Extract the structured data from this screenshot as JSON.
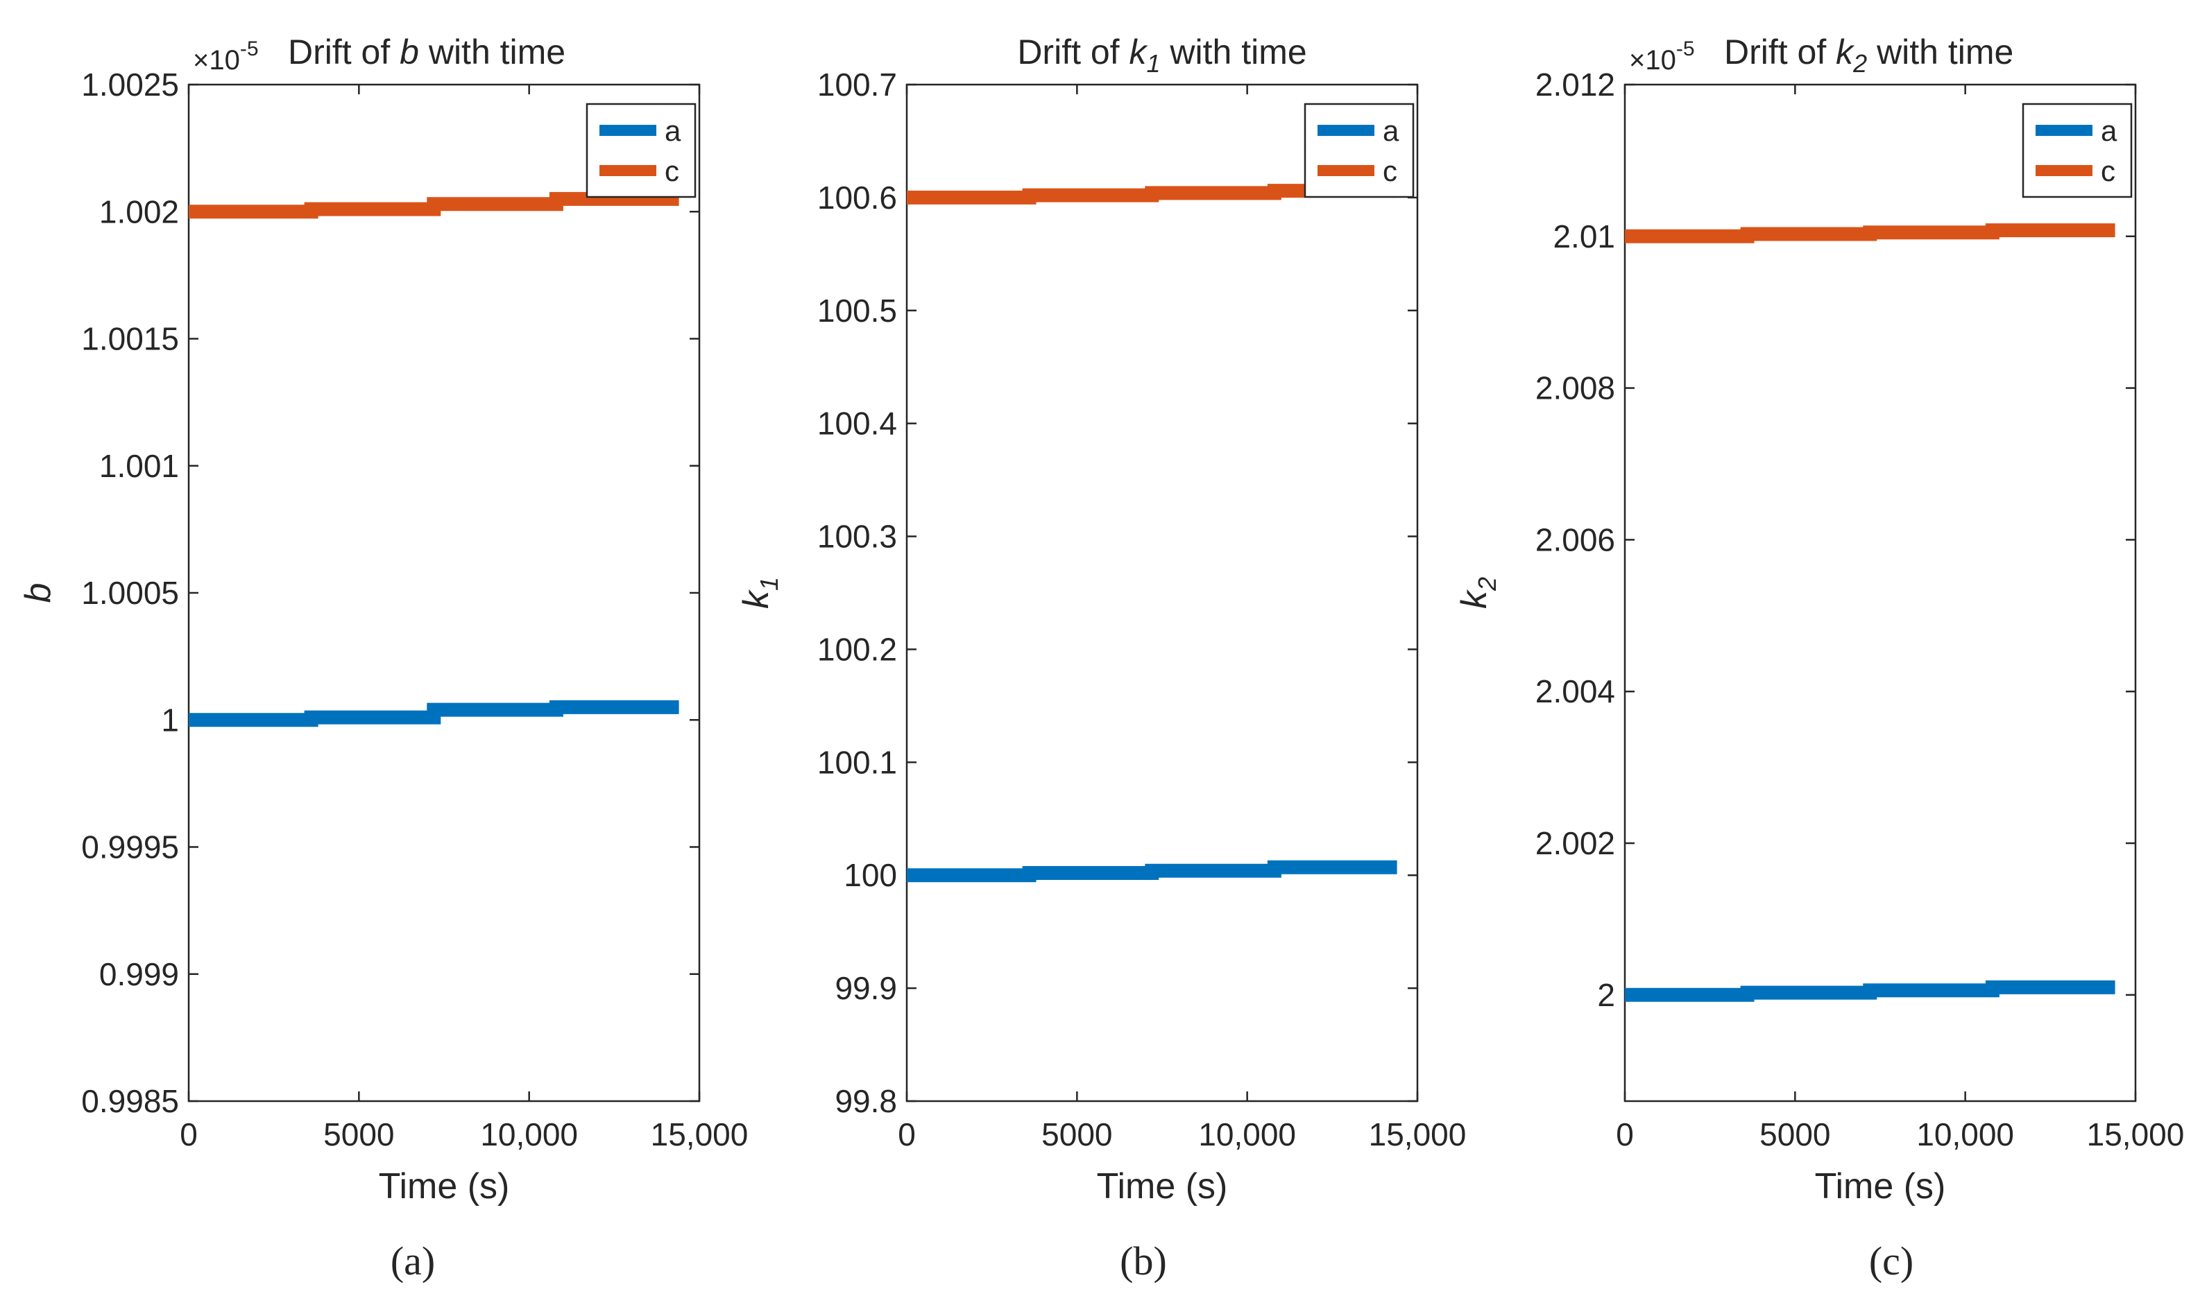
{
  "figure": {
    "captions": [
      "(a)",
      "(b)",
      "(c)"
    ]
  },
  "colors": {
    "series_a": "#0072BD",
    "series_c": "#D95319",
    "axis": "#262626",
    "background": "#ffffff"
  },
  "chart_data": [
    {
      "type": "line",
      "title_parts": [
        "Drift of ",
        "b",
        "",
        " with time"
      ],
      "exponent_base": "×10",
      "exponent_power": "-5",
      "xlabel": "Time (s)",
      "ylabel_main": "b",
      "ylabel_sub": "",
      "xlim": [
        0,
        15000
      ],
      "ylim": [
        0.9985,
        1.0025
      ],
      "xticks": [
        0,
        5000,
        10000,
        15000
      ],
      "xtick_labels": [
        "0",
        "5000",
        "10,000",
        "15,000"
      ],
      "yticks": [
        0.9985,
        0.999,
        0.9995,
        1,
        1.0005,
        1.001,
        1.0015,
        1.002,
        1.0025
      ],
      "ytick_labels": [
        "0.9985",
        "0.999",
        "0.9995",
        "1",
        "1.0005",
        "1.001",
        "1.0015",
        "1.002",
        "1.0025"
      ],
      "legend_position": "top-right",
      "series": [
        {
          "name": "a",
          "color": "#0072BD",
          "x": [
            0,
            3600,
            3600,
            7200,
            7200,
            10800,
            10800,
            14400
          ],
          "y": [
            1.0,
            1.0,
            1.00001,
            1.00001,
            1.00004,
            1.00004,
            1.00005,
            1.00005
          ]
        },
        {
          "name": "c",
          "color": "#D95319",
          "x": [
            0,
            3600,
            3600,
            7200,
            7200,
            10800,
            10800,
            14400
          ],
          "y": [
            1.002,
            1.002,
            1.00201,
            1.00201,
            1.00203,
            1.00203,
            1.00205,
            1.00205
          ]
        }
      ]
    },
    {
      "type": "line",
      "title_parts": [
        "Drift of ",
        "k",
        "1",
        " with time"
      ],
      "exponent_base": "",
      "exponent_power": "",
      "xlabel": "Time (s)",
      "ylabel_main": "k",
      "ylabel_sub": "1",
      "xlim": [
        0,
        15000
      ],
      "ylim": [
        99.8,
        100.7
      ],
      "xticks": [
        0,
        5000,
        10000,
        15000
      ],
      "xtick_labels": [
        "0",
        "5000",
        "10,000",
        "15,000"
      ],
      "yticks": [
        99.8,
        99.9,
        100,
        100.1,
        100.2,
        100.3,
        100.4,
        100.5,
        100.6,
        100.7
      ],
      "ytick_labels": [
        "99.8",
        "99.9",
        "100",
        "100.1",
        "100.2",
        "100.3",
        "100.4",
        "100.5",
        "100.6",
        "100.7"
      ],
      "legend_position": "top-right",
      "series": [
        {
          "name": "a",
          "color": "#0072BD",
          "x": [
            0,
            3600,
            3600,
            7200,
            7200,
            10800,
            10800,
            14400
          ],
          "y": [
            100.0,
            100.0,
            100.002,
            100.002,
            100.004,
            100.004,
            100.007,
            100.007
          ]
        },
        {
          "name": "c",
          "color": "#D95319",
          "x": [
            0,
            3600,
            3600,
            7200,
            7200,
            10800,
            10800,
            14400
          ],
          "y": [
            100.6,
            100.6,
            100.602,
            100.602,
            100.604,
            100.604,
            100.606,
            100.606
          ]
        }
      ]
    },
    {
      "type": "line",
      "title_parts": [
        "Drift of ",
        "k",
        "2",
        " with time"
      ],
      "exponent_base": "×10",
      "exponent_power": "-5",
      "xlabel": "Time (s)",
      "ylabel_main": "k",
      "ylabel_sub": "2",
      "xlim": [
        0,
        15000
      ],
      "ylim": [
        1.9986,
        2.012
      ],
      "xticks": [
        0,
        5000,
        10000,
        15000
      ],
      "xtick_labels": [
        "0",
        "5000",
        "10,000",
        "15,000"
      ],
      "yticks": [
        2,
        2.002,
        2.004,
        2.006,
        2.008,
        2.01,
        2.012
      ],
      "ytick_labels": [
        "2",
        "2.002",
        "2.004",
        "2.006",
        "2.008",
        "2.01",
        "2.012"
      ],
      "legend_position": "top-right",
      "series": [
        {
          "name": "a",
          "color": "#0072BD",
          "x": [
            0,
            3600,
            3600,
            7200,
            7200,
            10800,
            10800,
            14400
          ],
          "y": [
            2.0,
            2.0,
            2.00003,
            2.00003,
            2.00006,
            2.00006,
            2.0001,
            2.0001
          ]
        },
        {
          "name": "c",
          "color": "#D95319",
          "x": [
            0,
            3600,
            3600,
            7200,
            7200,
            10800,
            10800,
            14400
          ],
          "y": [
            2.01,
            2.01,
            2.01003,
            2.01003,
            2.01005,
            2.01005,
            2.01008,
            2.01008
          ]
        }
      ]
    }
  ]
}
